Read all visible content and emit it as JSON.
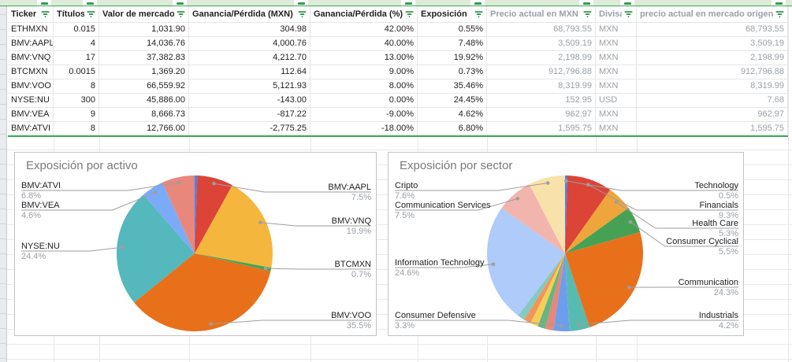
{
  "theme": {
    "accent_green": "#34A853",
    "filter_icon_green": "#1E8E3E",
    "muted_text": "#9AA0A6"
  },
  "table": {
    "columns": [
      {
        "label": "Ticker",
        "align": "left",
        "muted": false,
        "filter": true
      },
      {
        "label": "Títulos",
        "align": "right",
        "muted": false,
        "filter": true
      },
      {
        "label": "Valor de mercado",
        "align": "right",
        "muted": false,
        "filter": true
      },
      {
        "label": "Ganancia/Pérdida (MXN)",
        "align": "right",
        "muted": false,
        "filter": true
      },
      {
        "label": "Ganancia/Pérdida (%)",
        "align": "right",
        "muted": false,
        "filter": true
      },
      {
        "label": "Exposición",
        "align": "right",
        "muted": false,
        "filter": true
      },
      {
        "label": "Precio actual en MXN",
        "align": "right",
        "muted": true,
        "filter": true
      },
      {
        "label": "Divisa",
        "align": "left",
        "muted": true,
        "filter": true
      },
      {
        "label": "precio actual en mercado origen",
        "align": "right",
        "muted": true,
        "filter": true
      }
    ],
    "rows": [
      [
        "ETHMXN",
        "0.015",
        "1,031.90",
        "304.98",
        "42.00%",
        "0.55%",
        "68,793.55",
        "MXN",
        "68,793.55"
      ],
      [
        "BMV:AAPL",
        "4",
        "14,036.76",
        "4,000.76",
        "40.00%",
        "7.48%",
        "3,509.19",
        "MXN",
        "3,509.19"
      ],
      [
        "BMV:VNQ",
        "17",
        "37,382.83",
        "4,212.70",
        "13.00%",
        "19.92%",
        "2,198.99",
        "MXN",
        "2,198.99"
      ],
      [
        "BTCMXN",
        "0.0015",
        "1,369.20",
        "112.64",
        "9.00%",
        "0.73%",
        "912,796.88",
        "MXN",
        "912,796.88"
      ],
      [
        "BMV:VOO",
        "8",
        "66,559.92",
        "5,121.93",
        "8.00%",
        "35.46%",
        "8,319.99",
        "MXN",
        "8,319.99"
      ],
      [
        "NYSE:NU",
        "300",
        "45,886.00",
        "-143.00",
        "0.00%",
        "24.45%",
        "152.95",
        "USD",
        "7.68"
      ],
      [
        "BMV:VEA",
        "9",
        "8,666.73",
        "-817.22",
        "-9.00%",
        "4.62%",
        "962.97",
        "MXN",
        "962.97"
      ],
      [
        "BMV:ATVI",
        "8",
        "12,766.00",
        "-2,775.25",
        "-18.00%",
        "6.80%",
        "1,595.75",
        "MXN",
        "1,595.75"
      ]
    ]
  },
  "chart_data": [
    {
      "type": "pie",
      "title": "Exposición por activo",
      "legend_position": "labeled-callouts",
      "slices": [
        {
          "name": "ETHMXN",
          "value": 0.55,
          "color": "#4285F4",
          "label": null
        },
        {
          "name": "BMV:AAPL",
          "value": 7.48,
          "color": "#DB4437",
          "label": "7.5%",
          "side": "right",
          "label_y": 39
        },
        {
          "name": "BMV:VNQ",
          "value": 19.92,
          "color": "#F5B63E",
          "label": "19.9%",
          "side": "right",
          "label_y": 82
        },
        {
          "name": "BTCMXN",
          "value": 0.73,
          "color": "#3EA853",
          "label": "0.7%",
          "side": "right",
          "label_y": 137
        },
        {
          "name": "BMV:VOO",
          "value": 35.46,
          "color": "#E8701B",
          "label": "35.5%",
          "side": "right",
          "label_y": 202
        },
        {
          "name": "NYSE:NU",
          "value": 24.45,
          "color": "#54B8BD",
          "label": "24.4%",
          "side": "left",
          "label_y": 114
        },
        {
          "name": "BMV:VEA",
          "value": 4.62,
          "color": "#7BAAF7",
          "label": "4.6%",
          "side": "left",
          "label_y": 62
        },
        {
          "name": "BMV:ATVI",
          "value": 6.8,
          "color": "#E8877C",
          "label": "6.8%",
          "side": "left",
          "label_y": 37
        }
      ]
    },
    {
      "type": "pie",
      "title": "Exposición por sector",
      "legend_position": "labeled-callouts",
      "slices": [
        {
          "name": "Technology",
          "value": 0.5,
          "color": "#4285F4",
          "label": "0.5%",
          "side": "right",
          "label_y": 37
        },
        {
          "name": "Financials",
          "value": 9.3,
          "color": "#DB4437",
          "label": "9.3%",
          "side": "right",
          "label_y": 62
        },
        {
          "name": "Health Care",
          "value": 5.3,
          "color": "#F0A53C",
          "label": "5.3%",
          "side": "right",
          "label_y": 85
        },
        {
          "name": "Consumer Cyclical",
          "value": 5.5,
          "color": "#47A154",
          "label": "5.5%",
          "side": "right",
          "label_y": 108
        },
        {
          "name": "Communication",
          "value": 24.3,
          "color": "#E8701B",
          "label": "24.3%",
          "side": "right",
          "label_y": 160
        },
        {
          "name": "Industrials",
          "value": 4.2,
          "color": "#58BBB0",
          "label": "4.2%",
          "side": "right",
          "label_y": 202
        },
        {
          "name": "Consumer Defensive",
          "value": 3.3,
          "color": "#6D9EEB",
          "label": "3.3%",
          "side": "left",
          "label_y": 202
        },
        {
          "name": null,
          "value": 1.7,
          "color": "#E88677",
          "label": null
        },
        {
          "name": null,
          "value": 1.6,
          "color": "#67B583",
          "label": null
        },
        {
          "name": null,
          "value": 1.6,
          "color": "#F3D054",
          "label": null
        },
        {
          "name": null,
          "value": 1.5,
          "color": "#F0965A",
          "label": null
        },
        {
          "name": null,
          "value": 1.5,
          "color": "#82CBC4",
          "label": null
        },
        {
          "name": "Information Technology",
          "value": 24.6,
          "color": "#AECBFA",
          "label": "24.6%",
          "side": "left",
          "label_y": 135
        },
        {
          "name": "Communication Services",
          "value": 7.5,
          "color": "#F2B5AD",
          "label": "7.5%",
          "side": "left",
          "label_y": 62
        },
        {
          "name": "Cripto",
          "value": 7.6,
          "color": "#F9E2A9",
          "label": "7.6%",
          "side": "left",
          "label_y": 37
        }
      ]
    }
  ]
}
